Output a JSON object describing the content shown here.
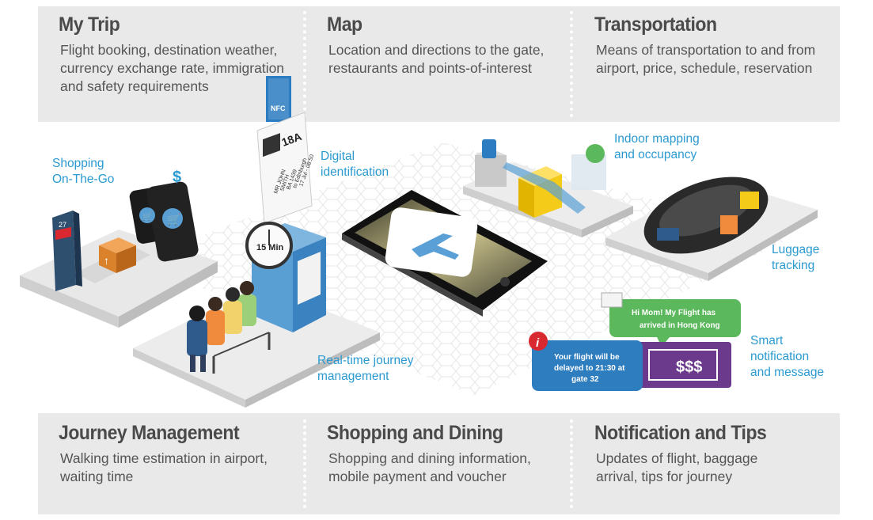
{
  "top": [
    {
      "title": "My Trip",
      "text": "Flight booking, destination weather, currency exchange rate, immigration and safety requirements"
    },
    {
      "title": "Map",
      "text": "Location and directions to the gate, restaurants and points-of-interest"
    },
    {
      "title": "Transportation",
      "text": "Means of transportation to and from airport, price, schedule, reservation"
    }
  ],
  "bottom": [
    {
      "title": "Journey Management",
      "text": "Walking time estimation in airport, waiting time"
    },
    {
      "title": "Shopping and Dining",
      "text": "Shopping and dining information, mobile payment and voucher"
    },
    {
      "title": "Notification and Tips",
      "text": "Updates of flight, baggage arrival, tips for journey"
    }
  ],
  "labels": {
    "shopping": [
      "Shopping",
      "On-The-Go"
    ],
    "digital_id": [
      "Digital",
      "identification"
    ],
    "indoor": [
      "Indoor mapping",
      "and occupancy"
    ],
    "luggage": [
      "Luggage",
      "tracking"
    ],
    "journey": [
      "Real-time journey",
      "management"
    ],
    "smart": [
      "Smart",
      "notification",
      "and message"
    ]
  },
  "graphics": {
    "nfc": "NFC",
    "seat": "18A",
    "pass_lines": [
      "MR JOHN",
      "SMITH",
      "BA 1439",
      "to Edinburgh",
      "17 Jul - 08:50"
    ],
    "clock": "15 Min",
    "kiosk_number": "27",
    "dollar": "$",
    "voucher": "$$$",
    "msg_green": [
      "Hi Mom! My Flight has",
      "arrived in Hong Kong"
    ],
    "msg_blue": [
      "Your flight will be",
      "delayed to 21:30 at",
      "gate 32"
    ],
    "info": "i"
  },
  "colors": {
    "accent": "#2b9ad0",
    "band": "#e9e9e9",
    "green": "#5cb85c",
    "purple": "#6b3a8c",
    "blue": "#2e7dbf"
  }
}
